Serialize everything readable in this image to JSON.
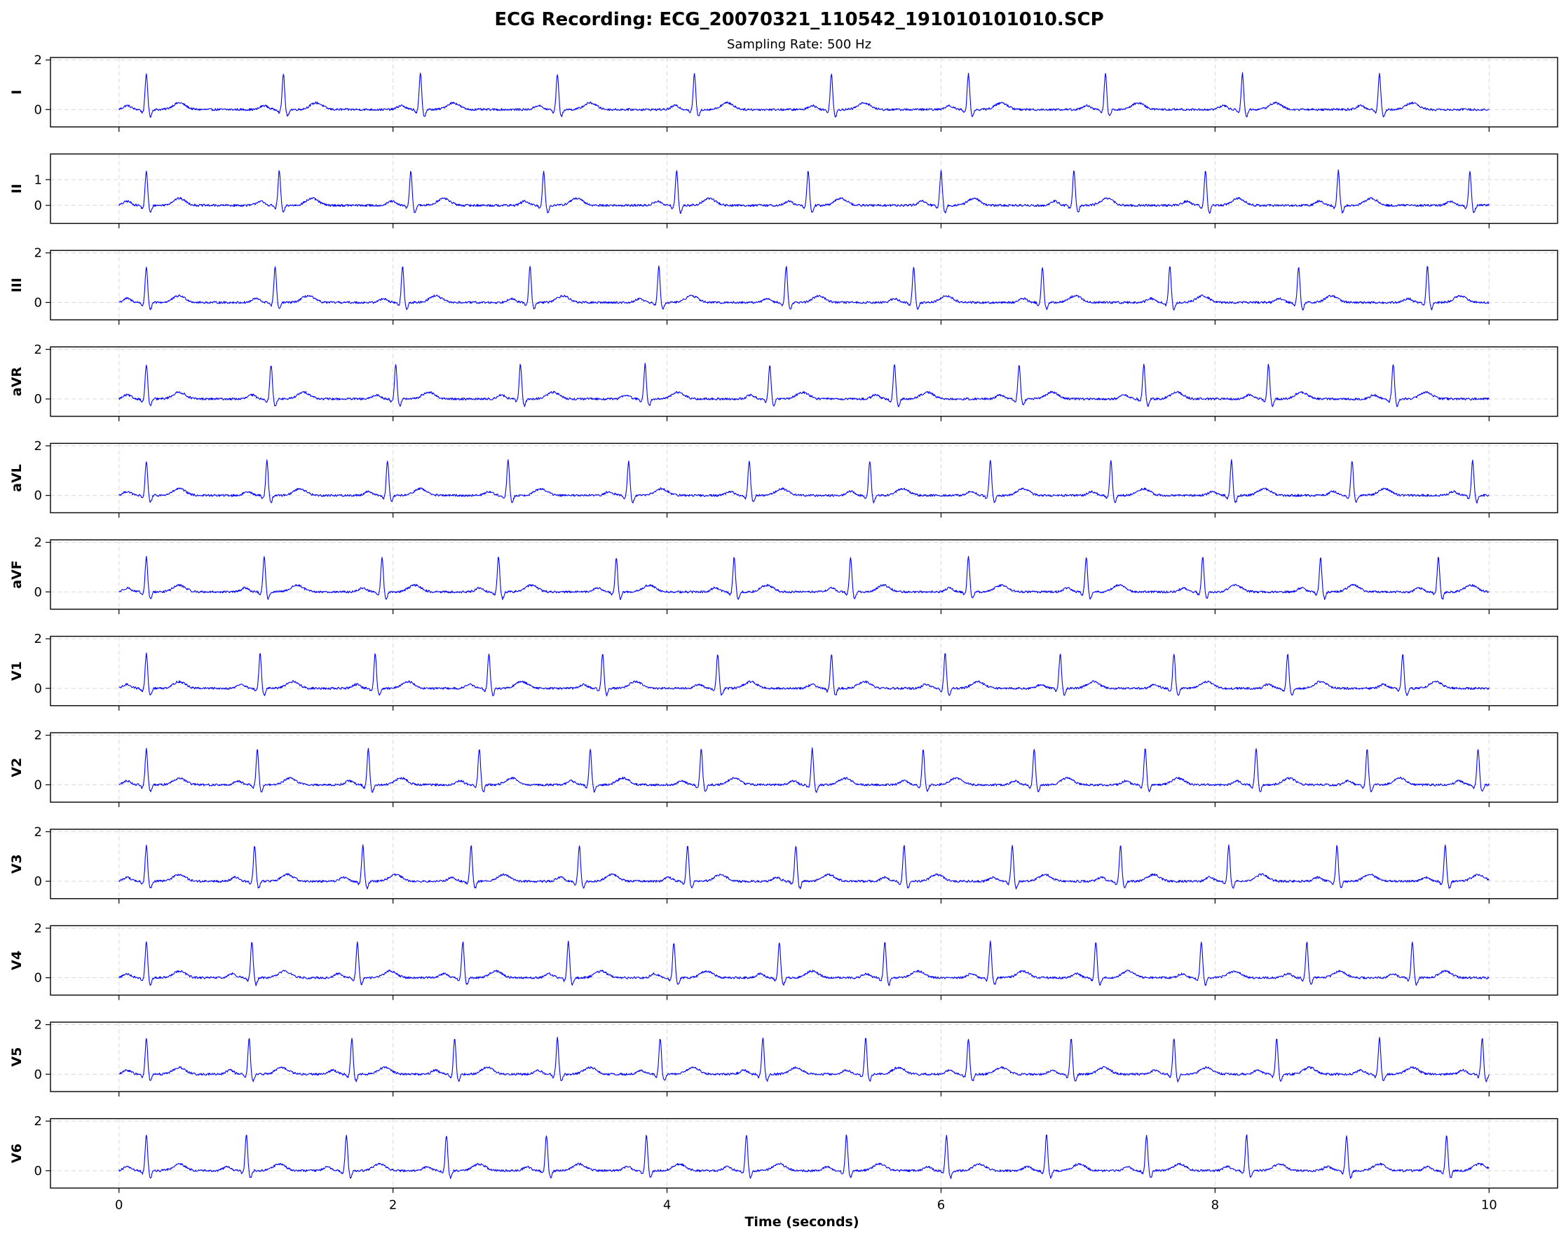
{
  "chart_data": {
    "type": "line",
    "title": "ECG Recording: ECG_20070321_110542_191010101010.SCP",
    "subtitle": "Sampling Rate: 500 Hz",
    "xlabel": "Time (seconds)",
    "xlim": [
      -0.5,
      10.5
    ],
    "x_ticks": [
      0,
      2,
      4,
      6,
      8,
      10
    ],
    "grid": true,
    "line_color": "#0000ff",
    "series": [
      {
        "name": "I",
        "ylim": [
          -0.7,
          2.1
        ],
        "y_ticks": [
          0,
          2
        ],
        "r_peaks": [
          0.2,
          1.2,
          2.2,
          3.2,
          4.2,
          5.2,
          6.2,
          7.2,
          8.2,
          9.2
        ],
        "r_amplitude": 1.45
      },
      {
        "name": "II",
        "ylim": [
          -0.7,
          2.0
        ],
        "y_ticks": [
          0,
          1
        ],
        "r_peaks": [
          0.2,
          1.17,
          2.13,
          3.1,
          4.07,
          5.03,
          6.0,
          6.97,
          7.93,
          8.9,
          9.86
        ],
        "r_amplitude": 1.35
      },
      {
        "name": "III",
        "ylim": [
          -0.7,
          2.1
        ],
        "y_ticks": [
          0,
          2
        ],
        "r_peaks": [
          0.2,
          1.14,
          2.07,
          3.0,
          3.94,
          4.87,
          5.8,
          6.74,
          7.67,
          8.61,
          9.55
        ],
        "r_amplitude": 1.45
      },
      {
        "name": "aVR",
        "ylim": [
          -0.7,
          2.1
        ],
        "y_ticks": [
          0,
          2
        ],
        "r_peaks": [
          0.2,
          1.11,
          2.02,
          2.93,
          3.84,
          4.75,
          5.66,
          6.57,
          7.48,
          8.39,
          9.3
        ],
        "r_amplitude": 1.4
      },
      {
        "name": "aVL",
        "ylim": [
          -0.7,
          2.1
        ],
        "y_ticks": [
          0,
          2
        ],
        "r_peaks": [
          0.2,
          1.08,
          1.96,
          2.84,
          3.72,
          4.6,
          5.48,
          6.36,
          7.24,
          8.12,
          9.0,
          9.88
        ],
        "r_amplitude": 1.4
      },
      {
        "name": "aVF",
        "ylim": [
          -0.7,
          2.1
        ],
        "y_ticks": [
          0,
          2
        ],
        "r_peaks": [
          0.2,
          1.06,
          1.92,
          2.77,
          3.63,
          4.49,
          5.34,
          6.2,
          7.06,
          7.91,
          8.77,
          9.63
        ],
        "r_amplitude": 1.4
      },
      {
        "name": "V1",
        "ylim": [
          -0.7,
          2.1
        ],
        "y_ticks": [
          0,
          2
        ],
        "r_peaks": [
          0.2,
          1.03,
          1.87,
          2.7,
          3.53,
          4.37,
          5.2,
          6.03,
          6.87,
          7.7,
          8.53,
          9.37
        ],
        "r_amplitude": 1.4
      },
      {
        "name": "V2",
        "ylim": [
          -0.7,
          2.1
        ],
        "y_ticks": [
          0,
          2
        ],
        "r_peaks": [
          0.2,
          1.01,
          1.82,
          2.63,
          3.44,
          4.25,
          5.06,
          5.87,
          6.68,
          7.49,
          8.3,
          9.11,
          9.92
        ],
        "r_amplitude": 1.45
      },
      {
        "name": "V3",
        "ylim": [
          -0.7,
          2.1
        ],
        "y_ticks": [
          0,
          2
        ],
        "r_peaks": [
          0.2,
          0.99,
          1.78,
          2.57,
          3.36,
          4.15,
          4.94,
          5.73,
          6.52,
          7.31,
          8.1,
          8.89,
          9.68
        ],
        "r_amplitude": 1.45
      },
      {
        "name": "V4",
        "ylim": [
          -0.7,
          2.1
        ],
        "y_ticks": [
          0,
          2
        ],
        "r_peaks": [
          0.2,
          0.97,
          1.74,
          2.51,
          3.28,
          4.05,
          4.82,
          5.59,
          6.36,
          7.13,
          7.9,
          8.67,
          9.44
        ],
        "r_amplitude": 1.45
      },
      {
        "name": "V5",
        "ylim": [
          -0.7,
          2.1
        ],
        "y_ticks": [
          0,
          2
        ],
        "r_peaks": [
          0.2,
          0.95,
          1.7,
          2.45,
          3.2,
          3.95,
          4.7,
          5.45,
          6.2,
          6.95,
          7.7,
          8.45,
          9.2,
          9.95
        ],
        "r_amplitude": 1.45
      },
      {
        "name": "V6",
        "ylim": [
          -0.7,
          2.1
        ],
        "y_ticks": [
          0,
          2
        ],
        "r_peaks": [
          0.2,
          0.93,
          1.66,
          2.39,
          3.12,
          3.85,
          4.58,
          5.31,
          6.04,
          6.77,
          7.5,
          8.23,
          8.96,
          9.69
        ],
        "r_amplitude": 1.45
      }
    ]
  }
}
